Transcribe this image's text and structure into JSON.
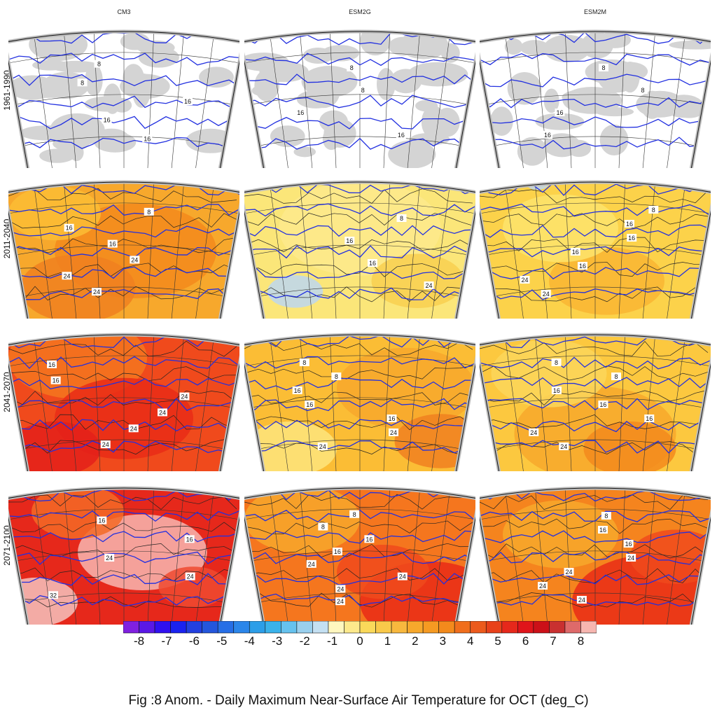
{
  "columns": [
    "CM3",
    "ESM2G",
    "ESM2M"
  ],
  "rows": [
    "1961-1990",
    "2011-2040",
    "2041-2070",
    "2071-2100"
  ],
  "panels": [
    {
      "bg": "#ffffff",
      "mask": "#d4d4d4",
      "tint": [],
      "labels": [
        "8",
        "8",
        "16",
        "16",
        "16"
      ]
    },
    {
      "bg": "#ffffff",
      "mask": "#d4d4d4",
      "tint": [],
      "labels": [
        "8",
        "8",
        "16",
        "16"
      ]
    },
    {
      "bg": "#ffffff",
      "mask": "#d4d4d4",
      "tint": [],
      "labels": [
        "8",
        "8",
        "16",
        "16"
      ]
    },
    {
      "bg": "#f7a82c",
      "tint": [
        [
          "#f38a1c",
          0.55,
          0.55,
          0.35
        ],
        [
          "#fbbd35",
          0.2,
          0.3,
          0.2
        ],
        [
          "#f08020",
          0.3,
          0.8,
          0.25
        ]
      ],
      "labels": [
        "8",
        "16",
        "16",
        "24",
        "24",
        "24"
      ]
    },
    {
      "bg": "#fbe679",
      "tint": [
        [
          "#bcd6f0",
          0.22,
          0.82,
          0.12
        ],
        [
          "#fde98c",
          0.5,
          0.4,
          0.35
        ],
        [
          "#f8cf50",
          0.75,
          0.75,
          0.2
        ]
      ],
      "labels": [
        "8",
        "16",
        "16",
        "24"
      ]
    },
    {
      "bg": "#fcd24a",
      "tint": [
        [
          "#bcd6f0",
          0.25,
          0.1,
          0.05
        ],
        [
          "#f9b632",
          0.55,
          0.75,
          0.25
        ],
        [
          "#fde46c",
          0.35,
          0.4,
          0.25
        ]
      ],
      "labels": [
        "8",
        "16",
        "16",
        "16",
        "16",
        "24",
        "24"
      ]
    },
    {
      "bg": "#f04a1c",
      "tint": [
        [
          "#f5761e",
          0.3,
          0.25,
          0.3
        ],
        [
          "#e92b16",
          0.5,
          0.65,
          0.3
        ],
        [
          "#e4201a",
          0.2,
          0.85,
          0.2
        ]
      ],
      "labels": [
        "16",
        "16",
        "24",
        "24",
        "24",
        "24"
      ]
    },
    {
      "bg": "#fbbd35",
      "tint": [
        [
          "#f7a82c",
          0.7,
          0.45,
          0.3
        ],
        [
          "#f08020",
          0.85,
          0.8,
          0.2
        ],
        [
          "#fde57c",
          0.2,
          0.85,
          0.2
        ]
      ],
      "labels": [
        "8",
        "8",
        "16",
        "16",
        "16",
        "24",
        "24"
      ]
    },
    {
      "bg": "#fcc83f",
      "tint": [
        [
          "#f7a82c",
          0.5,
          0.75,
          0.35
        ],
        [
          "#f38a1c",
          0.65,
          0.85,
          0.2
        ],
        [
          "#fbd65b",
          0.3,
          0.35,
          0.25
        ]
      ],
      "labels": [
        "8",
        "8",
        "16",
        "16",
        "16",
        "24",
        "24"
      ]
    },
    {
      "bg": "#e6281b",
      "tint": [
        [
          "#f7b6b0",
          0.58,
          0.52,
          0.28
        ],
        [
          "#f5c2bd",
          0.12,
          0.85,
          0.18
        ],
        [
          "#f36a26",
          0.3,
          0.25,
          0.2
        ],
        [
          "#ee4a30",
          0.8,
          0.75,
          0.15
        ]
      ],
      "labels": [
        "16",
        "16",
        "24",
        "24",
        "32"
      ]
    },
    {
      "bg": "#f5761e",
      "tint": [
        [
          "#e92b16",
          0.8,
          0.85,
          0.3
        ],
        [
          "#f7a82c",
          0.25,
          0.3,
          0.25
        ],
        [
          "#f04a1c",
          0.6,
          0.65,
          0.2
        ]
      ],
      "labels": [
        "8",
        "8",
        "16",
        "16",
        "24",
        "24",
        "24",
        "24"
      ]
    },
    {
      "bg": "#f5841e",
      "tint": [
        [
          "#e92b16",
          0.75,
          0.85,
          0.35
        ],
        [
          "#f7a82c",
          0.35,
          0.4,
          0.25
        ],
        [
          "#f04a1c",
          0.85,
          0.55,
          0.2
        ]
      ],
      "labels": [
        "8",
        "16",
        "16",
        "24",
        "24",
        "24",
        "24"
      ]
    }
  ],
  "colorbar": {
    "labels": [
      "-8",
      "-7",
      "-6",
      "-5",
      "-4",
      "-3",
      "-2",
      "-1",
      "0",
      "1",
      "2",
      "3",
      "4",
      "5",
      "6",
      "7",
      "8"
    ],
    "colors": [
      "#8020e0",
      "#5a18e6",
      "#3010f0",
      "#1a22f0",
      "#2240e0",
      "#2456dc",
      "#266ee6",
      "#2b86ea",
      "#2c9ee8",
      "#3ab2ea",
      "#66c2ee",
      "#9ad0ee",
      "#c4e0f2",
      "#fff7bf",
      "#fde98c",
      "#fad95a",
      "#f9c94a",
      "#f8b83e",
      "#f7a82c",
      "#f59a22",
      "#f38a1c",
      "#f06e1c",
      "#ec5a1c",
      "#e8411a",
      "#e6281b",
      "#e0141a",
      "#cc1018",
      "#c93030",
      "#de6a6a",
      "#f7b6b0"
    ]
  },
  "caption": "Fig :8  Anom.  - Daily Maximum Near-Surface Air Temperature for OCT (deg_C)"
}
